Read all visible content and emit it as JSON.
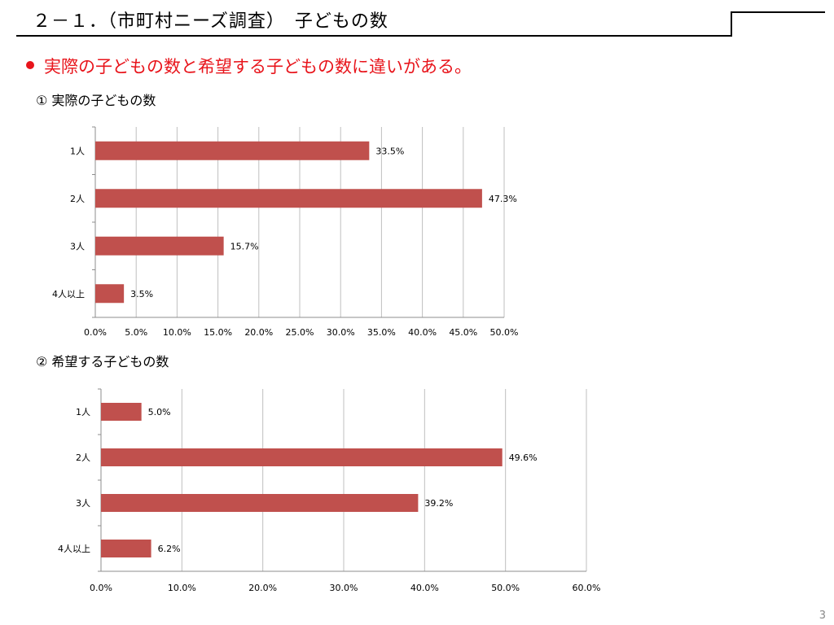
{
  "slide": {
    "title": "２－１．（市町村ニーズ調査）　子どもの数",
    "bullet": "実際の子どもの数と希望する子どもの数に違いがある。",
    "page_number": "3"
  },
  "colors": {
    "bar": "#c0504d",
    "bullet": "#e8141b",
    "grid": "#bfbfbf"
  },
  "chart_data": [
    {
      "type": "bar",
      "orientation": "horizontal",
      "title": "① 実際の子どもの数",
      "categories": [
        "1人",
        "2人",
        "3人",
        "4人以上"
      ],
      "values": [
        33.5,
        47.3,
        15.7,
        3.5
      ],
      "data_labels": [
        "33.5%",
        "47.3%",
        "15.7%",
        "3.5%"
      ],
      "xlim": [
        0,
        50
      ],
      "xticks": [
        0,
        5,
        10,
        15,
        20,
        25,
        30,
        35,
        40,
        45,
        50
      ],
      "xtick_labels": [
        "0.0%",
        "5.0%",
        "10.0%",
        "15.0%",
        "20.0%",
        "25.0%",
        "30.0%",
        "35.0%",
        "40.0%",
        "45.0%",
        "50.0%"
      ],
      "grid": true,
      "legend": "none"
    },
    {
      "type": "bar",
      "orientation": "horizontal",
      "title": "② 希望する子どもの数",
      "categories": [
        "1人",
        "2人",
        "3人",
        "4人以上"
      ],
      "values": [
        5.0,
        49.6,
        39.2,
        6.2
      ],
      "data_labels": [
        "5.0%",
        "49.6%",
        "39.2%",
        "6.2%"
      ],
      "xlim": [
        0,
        60
      ],
      "xticks": [
        0,
        10,
        20,
        30,
        40,
        50,
        60
      ],
      "xtick_labels": [
        "0.0%",
        "10.0%",
        "20.0%",
        "30.0%",
        "40.0%",
        "50.0%",
        "60.0%"
      ],
      "grid": true,
      "legend": "none"
    }
  ]
}
